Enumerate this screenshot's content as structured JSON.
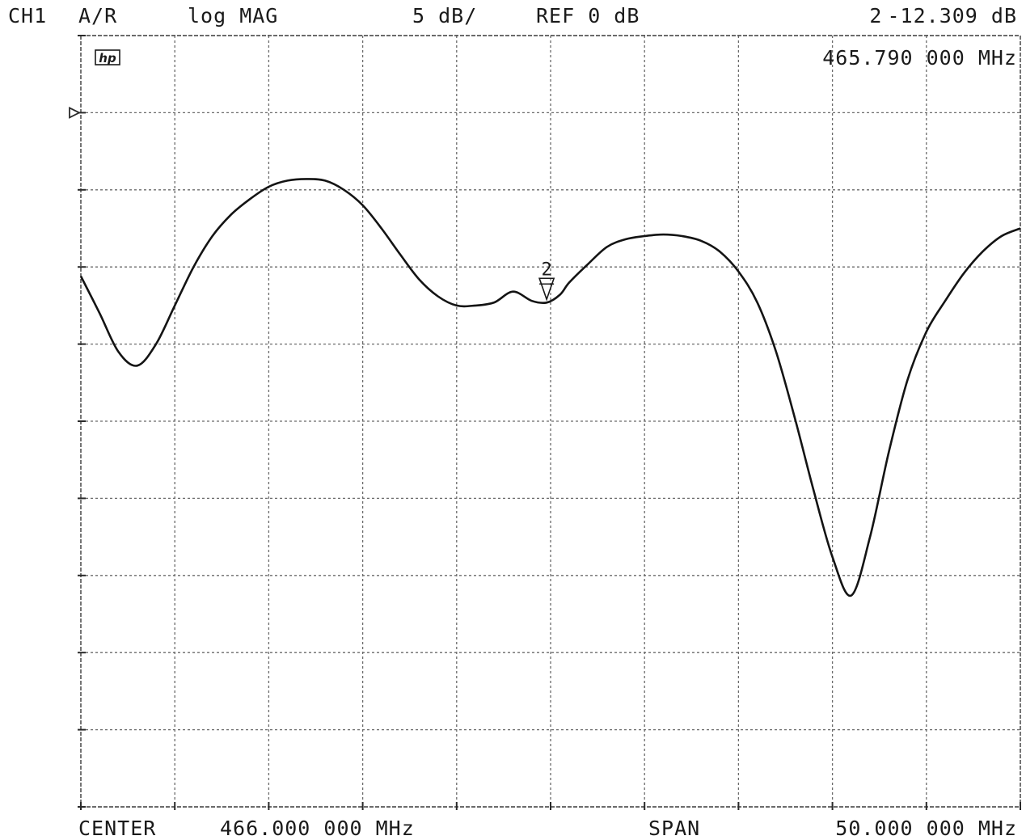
{
  "header": {
    "channel": "CH1",
    "measurement": "A/R",
    "format": "log MAG",
    "scale": "5 dB/",
    "reference": "REF 0 dB",
    "marker_number": "2",
    "marker_value": "-12.309 dB",
    "marker_frequency": "465.790 000 MHz"
  },
  "logo": "hp",
  "footer": {
    "center_label": "CENTER",
    "center_value": "466.000 000 MHz",
    "span_label": "SPAN",
    "span_value": "50.000 000 MHz"
  },
  "chart_data": {
    "type": "line",
    "x_unit": "MHz",
    "y_unit": "dB",
    "xlim": [
      441.0,
      491.0
    ],
    "ylim": [
      -45,
      5
    ],
    "reference_level_db": 0,
    "grid": true,
    "grid_divisions": {
      "x": 10,
      "y": 10
    },
    "series": [
      {
        "x": [
          441.0,
          442.0,
          443.0,
          444.0,
          445.0,
          446.0,
          447.0,
          448.0,
          449.0,
          450.0,
          451.0,
          452.0,
          453.0,
          454.0,
          455.0,
          456.0,
          457.0,
          458.0,
          459.0,
          460.0,
          461.0,
          462.0,
          463.0,
          464.0,
          465.0,
          465.79,
          466.5,
          467.0,
          468.0,
          469.0,
          470.0,
          471.0,
          472.0,
          473.0,
          474.0,
          475.0,
          476.0,
          477.0,
          478.0,
          479.0,
          480.0,
          481.0,
          482.0,
          483.0,
          484.0,
          485.0,
          486.0,
          487.0,
          488.0,
          489.0,
          490.0,
          491.0
        ],
        "y": [
          -10.6,
          -13.0,
          -15.5,
          -16.4,
          -15.0,
          -12.5,
          -10.0,
          -8.0,
          -6.6,
          -5.6,
          -4.8,
          -4.4,
          -4.3,
          -4.4,
          -5.0,
          -6.0,
          -7.5,
          -9.2,
          -10.8,
          -11.9,
          -12.5,
          -12.5,
          -12.3,
          -11.6,
          -12.2,
          -12.309,
          -11.8,
          -11.0,
          -9.8,
          -8.7,
          -8.2,
          -8.0,
          -7.9,
          -8.0,
          -8.3,
          -9.0,
          -10.3,
          -12.3,
          -15.5,
          -19.8,
          -24.5,
          -28.8,
          -31.3,
          -27.5,
          -22.0,
          -17.3,
          -14.2,
          -12.2,
          -10.4,
          -9.0,
          -8.0,
          -7.5
        ]
      }
    ],
    "markers": [
      {
        "label": "2",
        "x": 465.79,
        "y": -12.309
      }
    ]
  }
}
